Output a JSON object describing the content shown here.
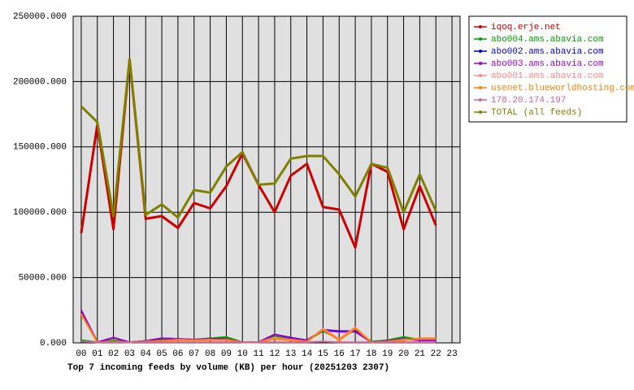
{
  "chart_data": {
    "type": "line",
    "title": "Top 7 incoming feeds by volume (KB) per hour (20251203 2307)",
    "categories": [
      "00",
      "01",
      "02",
      "03",
      "04",
      "05",
      "06",
      "07",
      "08",
      "09",
      "10",
      "11",
      "12",
      "13",
      "14",
      "15",
      "16",
      "17",
      "18",
      "19",
      "20",
      "21",
      "22",
      "23"
    ],
    "ylim": [
      0,
      250000
    ],
    "yticks": [
      {
        "value": 0,
        "label": "0.000"
      },
      {
        "value": 50000,
        "label": "50000.000"
      },
      {
        "value": 100000,
        "label": "100000.000"
      },
      {
        "value": 150000,
        "label": "150000.000"
      },
      {
        "value": 200000,
        "label": "200000.000"
      },
      {
        "value": 250000,
        "label": "250000.000"
      }
    ],
    "grid": true,
    "legend": "right",
    "series": [
      {
        "name": "iqoq.erje.net",
        "color": "#cc0000",
        "values": [
          84000,
          167000,
          87000,
          217000,
          95000,
          97000,
          88000,
          107000,
          103000,
          120000,
          145000,
          121000,
          100000,
          128000,
          137000,
          104000,
          102000,
          73000,
          137000,
          131000,
          87000,
          120000,
          90000,
          null
        ]
      },
      {
        "name": "abo004.ams.abavia.com",
        "color": "#00a000",
        "values": [
          2000,
          500,
          2000,
          500,
          1500,
          2500,
          2500,
          2500,
          3500,
          4500,
          500,
          500,
          5000,
          3000,
          1500,
          9000,
          3000,
          10000,
          1000,
          2000,
          4500,
          2500,
          2000,
          null
        ]
      },
      {
        "name": "abo002.ams.abavia.com",
        "color": "#0000cc",
        "values": [
          25000,
          500,
          4000,
          500,
          1500,
          3500,
          3000,
          2500,
          3000,
          3000,
          500,
          500,
          6500,
          4000,
          2000,
          10000,
          9000,
          9000,
          500,
          1500,
          3000,
          2000,
          2000,
          null
        ]
      },
      {
        "name": "abo003.ams.abavia.com",
        "color": "#a000cc",
        "values": [
          25000,
          500,
          4000,
          500,
          1500,
          3500,
          3000,
          2500,
          3000,
          3000,
          500,
          500,
          6500,
          3500,
          2000,
          9500,
          8500,
          8500,
          500,
          1500,
          3000,
          2000,
          2000,
          null
        ]
      },
      {
        "name": "abo001.ams.abavia.com",
        "color": "#ff8888",
        "values": [
          22000,
          500,
          1000,
          500,
          1000,
          1500,
          2500,
          2000,
          2500,
          2000,
          500,
          500,
          4000,
          2500,
          1000,
          11000,
          3000,
          12000,
          500,
          1000,
          2500,
          3000,
          3000,
          null
        ]
      },
      {
        "name": "usenet.blueworldhosting.com",
        "color": "#ff8000",
        "values": [
          22000,
          500,
          1000,
          500,
          1000,
          1500,
          2000,
          2000,
          2000,
          2500,
          500,
          500,
          3000,
          2000,
          1000,
          10000,
          2000,
          11000,
          500,
          1000,
          2000,
          3500,
          3500,
          null
        ]
      },
      {
        "name": "178.20.174.197",
        "color": "#cc6699",
        "values": [
          1000,
          500,
          500,
          500,
          500,
          500,
          500,
          500,
          500,
          500,
          500,
          500,
          500,
          500,
          500,
          1000,
          500,
          500,
          500,
          500,
          500,
          500,
          500,
          null
        ]
      },
      {
        "name": "TOTAL (all feeds)",
        "color": "#808000",
        "values": [
          181000,
          169000,
          97000,
          217000,
          98000,
          106000,
          96000,
          117000,
          115000,
          135000,
          146000,
          121000,
          122000,
          141000,
          143000,
          143000,
          129000,
          112000,
          137000,
          134000,
          100000,
          129000,
          101000,
          null
        ]
      }
    ]
  }
}
